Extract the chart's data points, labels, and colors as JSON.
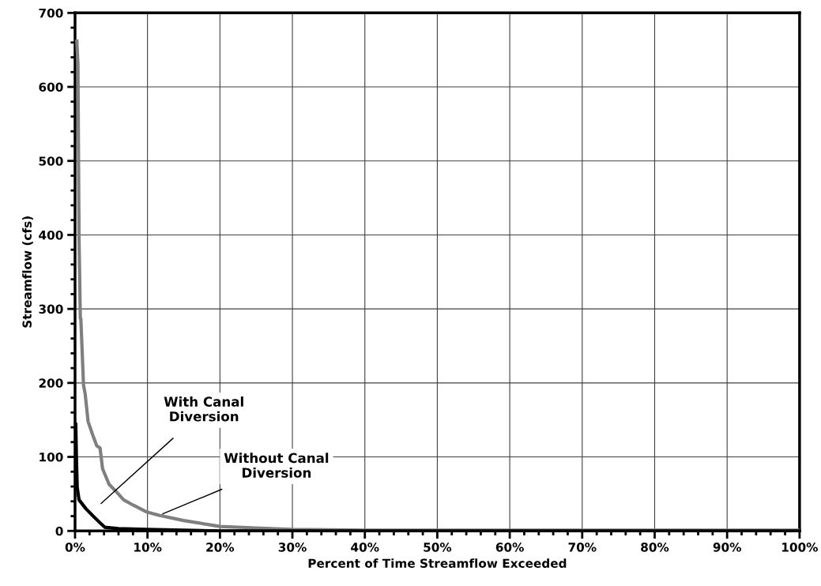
{
  "chart_data": {
    "type": "line",
    "xlabel": "Percent of Time Streamflow Exceeded",
    "ylabel": "Streamflow (cfs)",
    "series": [
      {
        "color": "#7f7f7f",
        "x": [
          0.25,
          0.4,
          0.55,
          0.73,
          0.8,
          1.17,
          1.4,
          1.8,
          2.5,
          3.0,
          3.45,
          3.8,
          4.7,
          5.5,
          6.7,
          8.0,
          9.8,
          11.6,
          15,
          20,
          25,
          30,
          40,
          50,
          60,
          70,
          80,
          90,
          100
        ],
        "values": [
          662,
          630,
          397,
          287,
          287,
          197,
          185,
          148,
          128,
          115,
          112,
          84,
          63,
          55,
          42,
          35,
          26,
          21,
          14,
          6,
          4,
          2,
          1,
          1,
          1,
          1,
          1,
          1,
          1
        ]
      },
      {
        "color": "#000000",
        "x": [
          0.1,
          0.2,
          0.3,
          0.55,
          1.5,
          2.5,
          3.45,
          4.1,
          6,
          10,
          15,
          20,
          30,
          40,
          60,
          80,
          100
        ],
        "values": [
          144,
          95,
          59,
          42,
          30,
          20,
          11,
          5,
          3,
          2,
          1,
          0,
          0,
          0,
          0,
          0,
          0
        ]
      }
    ],
    "annotations": [
      "With Canal\nDiversion",
      {
        "text": "Without Canal\nDiversion",
        "x": 12.1,
        "y": 23
      }
    ],
    "xlim": [
      0,
      100
    ],
    "xticks": [
      {
        "value": 0,
        "label": "0%"
      },
      {
        "value": 10,
        "label": "10%"
      },
      {
        "value": 20,
        "label": "20%"
      },
      {
        "value": 30,
        "label": "30%"
      },
      {
        "value": 40,
        "label": "40%"
      },
      {
        "value": 50,
        "label": "50%"
      },
      {
        "value": 60,
        "label": "60%"
      },
      {
        "value": 70,
        "label": "70%"
      },
      {
        "value": 80,
        "label": "80%"
      },
      {
        "value": 90,
        "label": "90%"
      },
      {
        "value": 100,
        "label": "100%"
      }
    ],
    "ylim": [
      0,
      700
    ],
    "yticks": [
      0,
      100,
      200,
      300,
      400,
      500,
      600,
      700
    ],
    "grid": true,
    "legend": false,
    "marker": "none",
    "line_style": "solid"
  }
}
